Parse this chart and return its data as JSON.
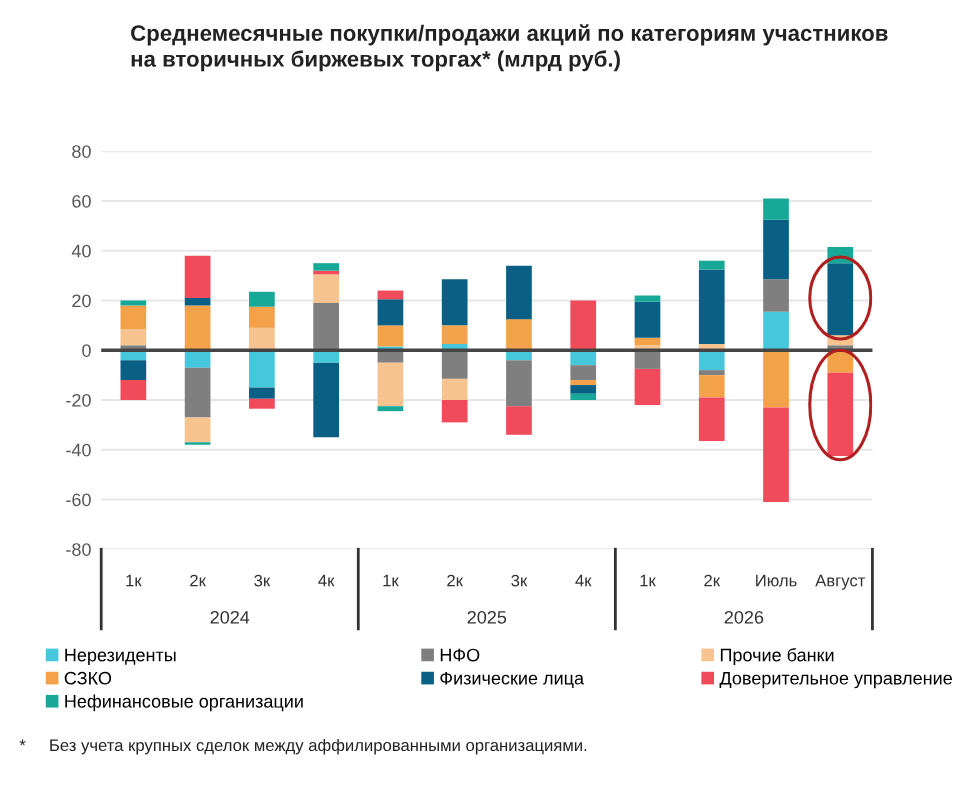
{
  "chart_data": {
    "type": "bar",
    "stacked": true,
    "title": "Среднемесячные покупки/продажи акций по категориям участников\nна вторичных биржевых торгах* (млрд руб.)",
    "categories": [
      "1к",
      "2к",
      "3к",
      "4к",
      "1к",
      "2к",
      "3к",
      "4к",
      "1к",
      "2к",
      "Июль",
      "Август"
    ],
    "series": [
      {
        "name": "Нерезиденты",
        "color": "#45c8dc",
        "values": [
          -4,
          -7,
          -15,
          -5,
          1.5,
          2.5,
          -4,
          -6,
          0,
          -8,
          15.5,
          0
        ]
      },
      {
        "name": "НФО",
        "color": "#7f7f80",
        "values": [
          2,
          -20,
          0,
          19,
          -5,
          -11.5,
          -18.5,
          -6,
          -7.5,
          -2,
          13,
          2
        ]
      },
      {
        "name": "Прочие банки",
        "color": "#f7c38e",
        "values": [
          6.5,
          -10,
          9,
          11.5,
          -17.5,
          -8.5,
          0,
          0,
          2,
          2.5,
          0,
          4
        ]
      },
      {
        "name": "СЗКО",
        "color": "#f4a24a",
        "values": [
          9.5,
          18,
          8.5,
          0,
          8.5,
          7.5,
          12.5,
          -2,
          3,
          -9,
          -23,
          -9
        ]
      },
      {
        "name": "Физические лица",
        "color": "#0a5f85",
        "values": [
          -8,
          3,
          -4.5,
          -30,
          10.5,
          18.5,
          21.5,
          -3.5,
          14.5,
          30,
          24,
          29
        ]
      },
      {
        "name": "Доверительное управление",
        "color": "#ef4b5a",
        "values": [
          -8,
          17,
          -4,
          1.5,
          3.5,
          -9,
          -11.5,
          20,
          -14.5,
          -17.5,
          -38,
          -33.5
        ]
      },
      {
        "name": "Нефинансовые организации",
        "color": "#17a898",
        "values": [
          2,
          -1,
          6,
          3,
          -2,
          0,
          0,
          -2.5,
          2.5,
          3.5,
          8.5,
          6.5
        ]
      }
    ],
    "ylim": [
      -80,
      80
    ],
    "yticks": [
      -80,
      -60,
      -40,
      -20,
      0,
      20,
      40,
      60,
      80
    ],
    "grid": "y",
    "legend": "bottom",
    "annotations": [
      "2024",
      "2025",
      "2026",
      "*     Без учета крупных сделок между аффилированными организациями."
    ]
  }
}
